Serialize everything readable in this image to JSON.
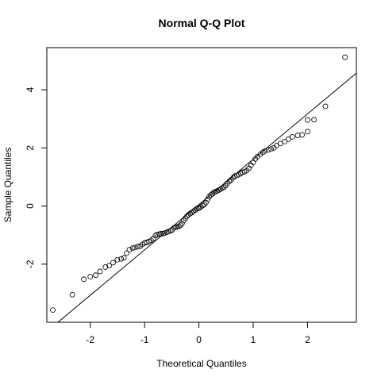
{
  "chart_data": {
    "type": "scatter",
    "title": "Normal Q-Q Plot",
    "xlabel": "Theoretical Quantiles",
    "ylabel": "Sample Quantiles",
    "xlim": [
      -2.8,
      2.9
    ],
    "ylim": [
      -4.0,
      5.45
    ],
    "x_ticks": [
      -2,
      -1,
      0,
      1,
      2
    ],
    "y_ticks": [
      -2,
      0,
      2,
      4
    ],
    "tick_labels_x": [
      "-2",
      "-1",
      "0",
      "1",
      "2"
    ],
    "tick_labels_y": [
      "-2",
      "0",
      "2",
      "4"
    ],
    "grid": false,
    "legend": "none",
    "reference_line": {
      "intercept": 0.05,
      "slope": 1.56
    },
    "points": [
      [
        -2.69,
        -3.58
      ],
      [
        -2.33,
        -3.05
      ],
      [
        -2.12,
        -2.52
      ],
      [
        -2.0,
        -2.43
      ],
      [
        -1.9,
        -2.38
      ],
      [
        -1.82,
        -2.25
      ],
      [
        -1.72,
        -2.1
      ],
      [
        -1.65,
        -2.05
      ],
      [
        -1.58,
        -1.95
      ],
      [
        -1.5,
        -1.85
      ],
      [
        -1.43,
        -1.82
      ],
      [
        -1.38,
        -1.78
      ],
      [
        -1.33,
        -1.62
      ],
      [
        -1.28,
        -1.5
      ],
      [
        -1.22,
        -1.45
      ],
      [
        -1.18,
        -1.43
      ],
      [
        -1.13,
        -1.4
      ],
      [
        -1.08,
        -1.38
      ],
      [
        -1.04,
        -1.32
      ],
      [
        -1.0,
        -1.27
      ],
      [
        -0.96,
        -1.25
      ],
      [
        -0.92,
        -1.22
      ],
      [
        -0.88,
        -1.18
      ],
      [
        -0.84,
        -1.12
      ],
      [
        -0.8,
        -1.02
      ],
      [
        -0.77,
        -0.98
      ],
      [
        -0.73,
        -0.97
      ],
      [
        -0.7,
        -0.95
      ],
      [
        -0.66,
        -0.95
      ],
      [
        -0.63,
        -0.93
      ],
      [
        -0.59,
        -0.9
      ],
      [
        -0.56,
        -0.88
      ],
      [
        -0.52,
        -0.85
      ],
      [
        -0.49,
        -0.82
      ],
      [
        -0.46,
        -0.75
      ],
      [
        -0.43,
        -0.73
      ],
      [
        -0.4,
        -0.72
      ],
      [
        -0.37,
        -0.7
      ],
      [
        -0.34,
        -0.66
      ],
      [
        -0.31,
        -0.6
      ],
      [
        -0.28,
        -0.5
      ],
      [
        -0.25,
        -0.42
      ],
      [
        -0.22,
        -0.35
      ],
      [
        -0.19,
        -0.3
      ],
      [
        -0.16,
        -0.26
      ],
      [
        -0.13,
        -0.23
      ],
      [
        -0.1,
        -0.18
      ],
      [
        -0.07,
        -0.14
      ],
      [
        -0.04,
        -0.1
      ],
      [
        -0.01,
        -0.08
      ],
      [
        0.01,
        -0.06
      ],
      [
        0.04,
        -0.03
      ],
      [
        0.07,
        0.02
      ],
      [
        0.1,
        0.05
      ],
      [
        0.13,
        0.12
      ],
      [
        0.16,
        0.23
      ],
      [
        0.19,
        0.32
      ],
      [
        0.22,
        0.38
      ],
      [
        0.25,
        0.42
      ],
      [
        0.28,
        0.47
      ],
      [
        0.31,
        0.5
      ],
      [
        0.34,
        0.52
      ],
      [
        0.37,
        0.55
      ],
      [
        0.4,
        0.58
      ],
      [
        0.43,
        0.62
      ],
      [
        0.46,
        0.65
      ],
      [
        0.49,
        0.7
      ],
      [
        0.52,
        0.78
      ],
      [
        0.56,
        0.85
      ],
      [
        0.59,
        0.9
      ],
      [
        0.63,
        0.97
      ],
      [
        0.66,
        1.03
      ],
      [
        0.7,
        1.05
      ],
      [
        0.73,
        1.08
      ],
      [
        0.77,
        1.12
      ],
      [
        0.8,
        1.16
      ],
      [
        0.84,
        1.18
      ],
      [
        0.88,
        1.22
      ],
      [
        0.92,
        1.3
      ],
      [
        0.96,
        1.4
      ],
      [
        1.0,
        1.5
      ],
      [
        1.04,
        1.62
      ],
      [
        1.08,
        1.7
      ],
      [
        1.13,
        1.78
      ],
      [
        1.18,
        1.85
      ],
      [
        1.22,
        1.9
      ],
      [
        1.28,
        1.93
      ],
      [
        1.33,
        1.96
      ],
      [
        1.38,
        2.0
      ],
      [
        1.43,
        2.08
      ],
      [
        1.5,
        2.15
      ],
      [
        1.58,
        2.22
      ],
      [
        1.65,
        2.3
      ],
      [
        1.72,
        2.38
      ],
      [
        1.82,
        2.43
      ],
      [
        1.9,
        2.45
      ],
      [
        2.0,
        2.56
      ],
      [
        2.12,
        2.97
      ],
      [
        2.0,
        2.96
      ],
      [
        2.33,
        3.43
      ],
      [
        2.69,
        5.12
      ]
    ]
  }
}
